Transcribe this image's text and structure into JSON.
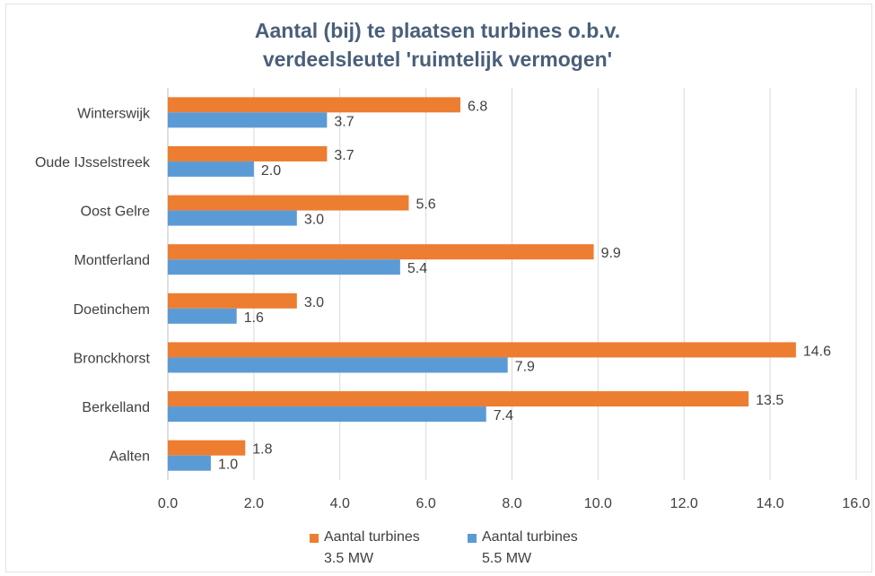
{
  "chart_data": {
    "type": "bar",
    "orientation": "horizontal",
    "title_lines": [
      "Aantal (bij) te plaatsen turbines o.b.v.",
      "verdeelsleutel 'ruimtelijk vermogen'"
    ],
    "categories": [
      "Winterswijk",
      "Oude IJsselstreek",
      "Oost Gelre",
      "Montferland",
      "Doetinchem",
      "Bronckhorst",
      "Berkelland",
      "Aalten"
    ],
    "series": [
      {
        "name_line1": "Aantal turbines",
        "name_line2": "3.5 MW",
        "color": "#ed7d31",
        "values": [
          6.8,
          3.7,
          5.6,
          9.9,
          3.0,
          14.6,
          13.5,
          1.8
        ],
        "labels": [
          "6.8",
          "3.7",
          "5.6",
          "9.9",
          "3.0",
          "14.6",
          "13.5",
          "1.8"
        ]
      },
      {
        "name_line1": "Aantal turbines",
        "name_line2": "5.5 MW",
        "color": "#5b9bd5",
        "values": [
          3.7,
          2.0,
          3.0,
          5.4,
          1.6,
          7.9,
          7.4,
          1.0
        ],
        "labels": [
          "3.7",
          "2.0",
          "3.0",
          "5.4",
          "1.6",
          "7.9",
          "7.4",
          "1.0"
        ]
      }
    ],
    "xlim": [
      0,
      16
    ],
    "xticks": [
      "0.0",
      "2.0",
      "4.0",
      "6.0",
      "8.0",
      "10.0",
      "12.0",
      "14.0",
      "16.0"
    ],
    "grid": true,
    "legend_position": "bottom"
  }
}
